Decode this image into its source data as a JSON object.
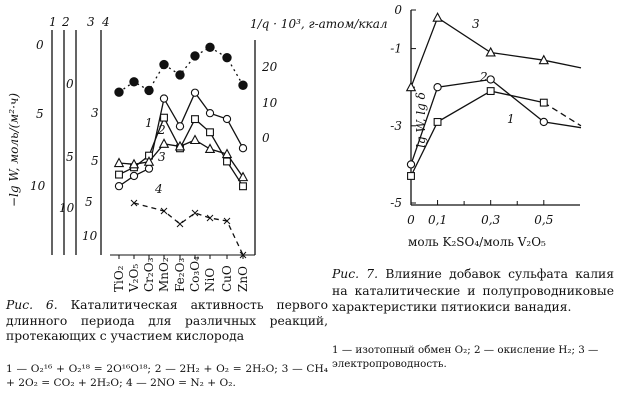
{
  "figure6": {
    "scale_numbers": [
      "1",
      "2",
      "3",
      "4"
    ],
    "left_axis_label": "−lg W, моль/(м²·ч)",
    "scale1_ticks": [
      "0",
      "5",
      "10"
    ],
    "scale2_ticks": [
      "0",
      "5",
      "10"
    ],
    "scale3_ticks": [
      "3",
      "5",
      "10"
    ],
    "scale4_ticks": [
      "5",
      "10"
    ],
    "right_axis_label_top": "1/q · 10³, г-атом/ккал",
    "right_axis_ticks": [
      "20",
      "10",
      "0"
    ],
    "series_labels": [
      "1",
      "2",
      "3",
      "4"
    ],
    "oxides": [
      "TiO₂",
      "V₂O₅",
      "Cr₂O₃",
      "MnO₂",
      "Fe₂O₃",
      "Co₃O₄",
      "NiO",
      "CuO",
      "ZnO"
    ]
  },
  "caption6": {
    "title": "Рис. 6.",
    "text": "Каталитическая активность первого длинного периода для различных реакций, протекающих с участием кислорода",
    "reactions": "1 — O₂¹⁶ + O₂¹⁸ = 2O¹⁶O¹⁸;   2 — 2H₂ + O₂ = 2H₂O;   3 — CH₄ + 2O₂ = CO₂ + 2H₂O;   4 — 2NO = N₂ + O₂."
  },
  "figure7": {
    "y_label": "lg W, lg δ",
    "y_ticks": [
      "0",
      "-1",
      "-3",
      "-5"
    ],
    "x_ticks": [
      "0",
      "0,1",
      "0,3",
      "0,5"
    ],
    "x_label": "моль K₂SO₄/моль V₂O₅",
    "series_labels": [
      "3",
      "2",
      "1"
    ]
  },
  "caption7": {
    "title": "Рис. 7.",
    "text": "Влияние добавок сульфата калия на каталитические и полупроводниковые характеристики пятиокиси ванадия.",
    "legend": "1 — изотопный обмен O₂; 2 — окисление H₂; 3 — электропроводность."
  },
  "chart_data": [
    {
      "id": "figure-6",
      "type": "line",
      "categories": [
        "TiO₂",
        "V₂O₅",
        "Cr₂O₃",
        "MnO₂",
        "Fe₂O₃",
        "Co₃O₄",
        "NiO",
        "CuO",
        "ZnO"
      ],
      "ylabel": "−lg W, моль/(м²·ч)",
      "y2label": "1/q · 10³, г-атом/ккал",
      "series": [
        {
          "name": "1",
          "marker": "circle",
          "scale": "1",
          "values": [
            9.6,
            8.9,
            8.4,
            3.6,
            5.5,
            3.2,
            4.6,
            5.0,
            7.0
          ]
        },
        {
          "name": "2",
          "marker": "square",
          "scale": "2",
          "values": [
            6.0,
            5.5,
            4.7,
            2.1,
            4.2,
            2.2,
            3.1,
            5.1,
            6.8
          ]
        },
        {
          "name": "3",
          "marker": "triangle",
          "scale": "3",
          "values": [
            4.3,
            4.4,
            4.2,
            2.8,
            3.0,
            2.5,
            3.2,
            3.6,
            5.4
          ]
        },
        {
          "name": "4",
          "marker": "x",
          "scale": "4",
          "values": [
            null,
            2.3,
            null,
            3.1,
            4.4,
            3.3,
            3.8,
            4.1,
            7.5
          ]
        },
        {
          "name": "1/q",
          "marker": "dot",
          "scale": "right",
          "values": [
            13.0,
            16.0,
            13.5,
            21.0,
            18.0,
            23.5,
            26.0,
            23.0,
            15.0
          ]
        }
      ]
    },
    {
      "id": "figure-7",
      "type": "line",
      "x": [
        0,
        0.1,
        0.3,
        0.5,
        0.64
      ],
      "xlabel": "моль K₂SO₄/моль V₂O₅",
      "ylabel": "lg W, lg δ",
      "xlim": [
        0,
        0.64
      ],
      "ylim": [
        -5,
        0
      ],
      "series": [
        {
          "name": "3",
          "marker": "triangle",
          "values": [
            -2.0,
            -0.2,
            -1.1,
            -1.3,
            -1.5
          ]
        },
        {
          "name": "2",
          "marker": "circle",
          "values": [
            -4.0,
            -2.0,
            -1.8,
            -2.9,
            -3.05
          ]
        },
        {
          "name": "1",
          "marker": "square",
          "values": [
            -4.3,
            -2.9,
            -2.1,
            -2.4,
            -3.0
          ]
        }
      ]
    }
  ]
}
